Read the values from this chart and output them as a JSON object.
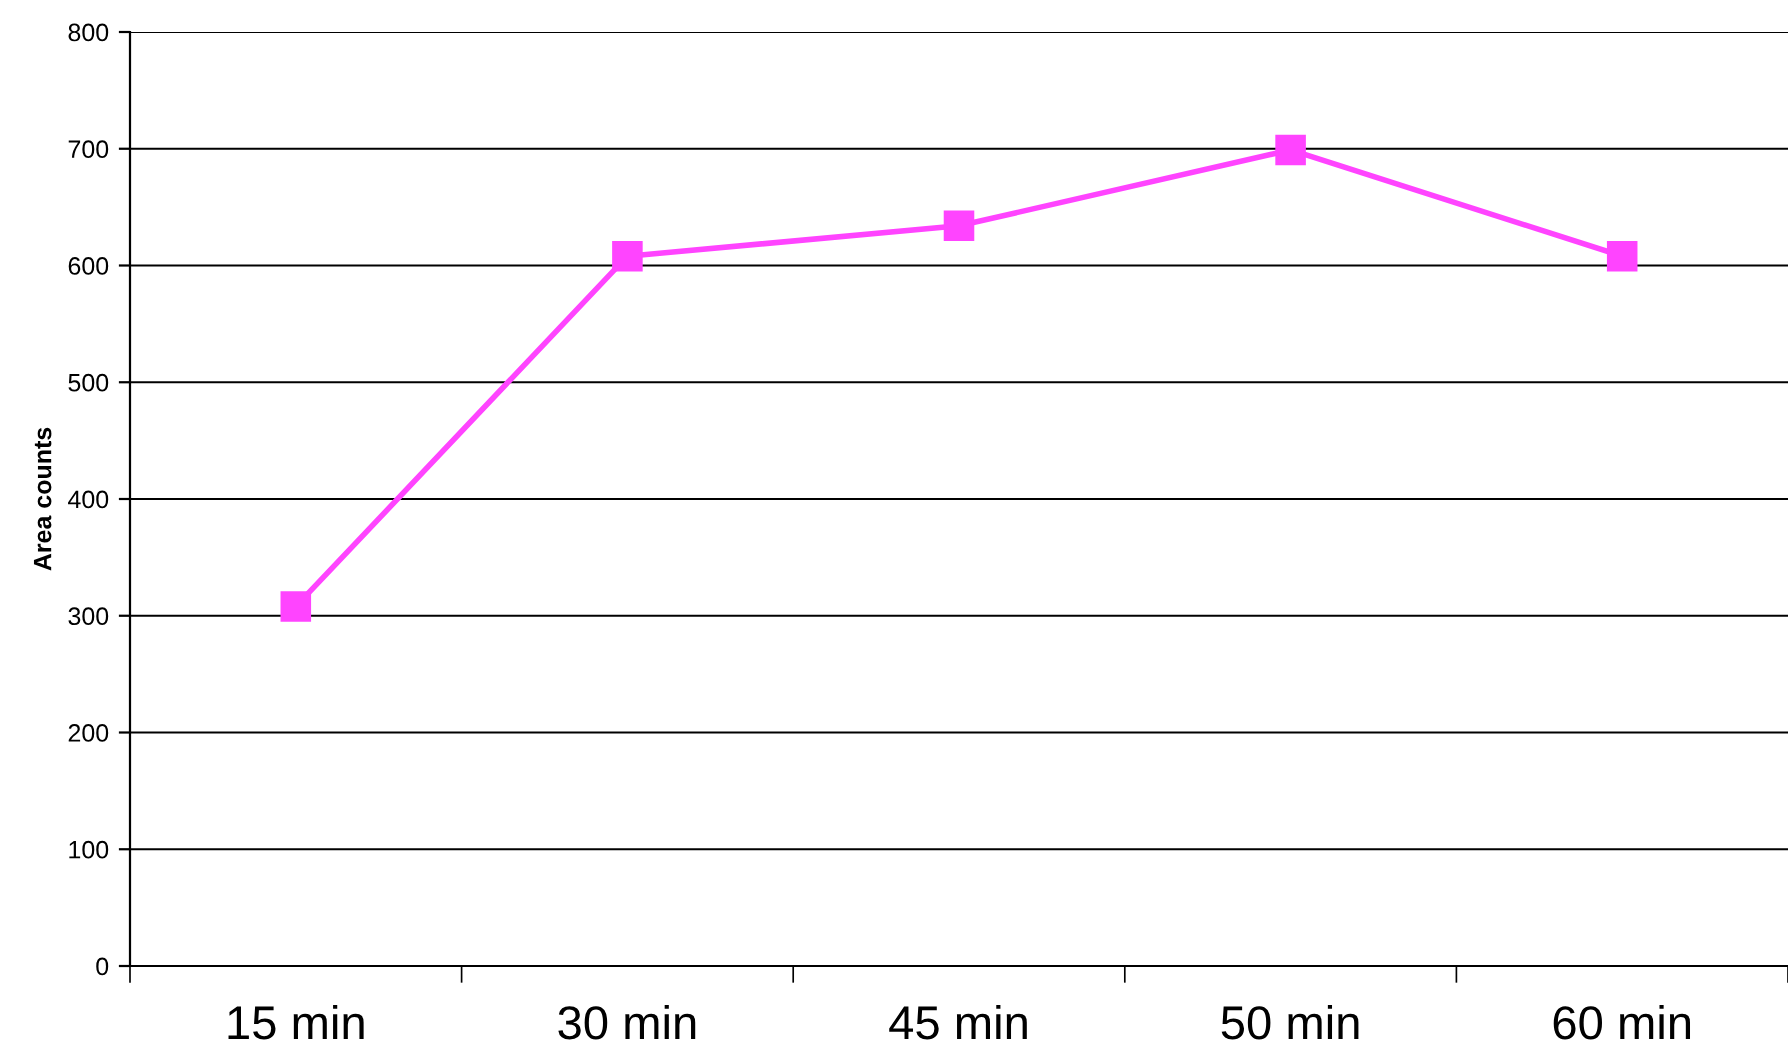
{
  "chart_data": {
    "type": "line",
    "ylabel": "Area counts",
    "categories": [
      "15 min",
      "30 min",
      "45 min",
      "50 min",
      "60 min"
    ],
    "series": [
      {
        "color": "#ff44ff",
        "values": [
          308,
          608,
          634,
          699,
          608
        ]
      }
    ],
    "ylim": [
      0,
      800
    ],
    "yticks": [
      0,
      100,
      200,
      300,
      400,
      500,
      600,
      700,
      800
    ],
    "grid": "y",
    "marker": "square",
    "line_style": "solid"
  }
}
